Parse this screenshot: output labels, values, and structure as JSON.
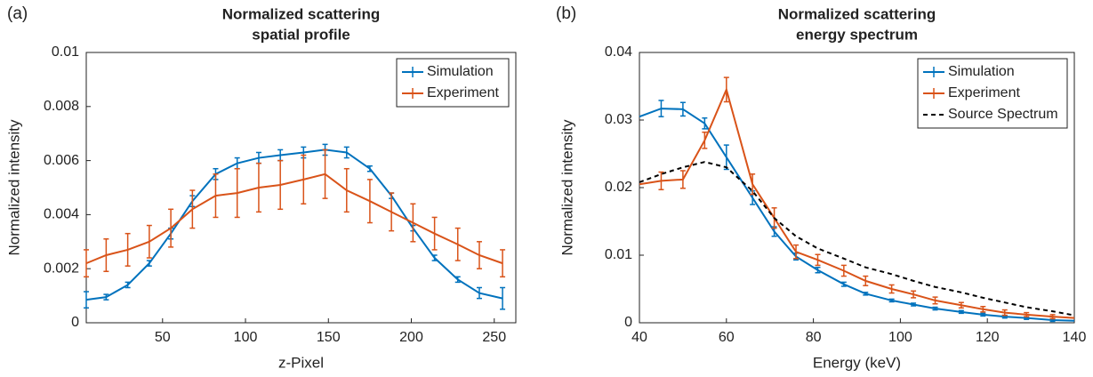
{
  "chart_data": [
    {
      "type": "line",
      "panel": "(a)",
      "title": "Normalized scattering",
      "subtitle": "spatial profile",
      "xlabel": "z-Pixel",
      "ylabel": "Normalized intensity",
      "xlim": [
        4,
        263
      ],
      "xticks": [
        50,
        100,
        150,
        200,
        250
      ],
      "ylim": [
        0,
        0.01
      ],
      "yticks": [
        0,
        0.002,
        0.004,
        0.006,
        0.008,
        0.01
      ],
      "legend": "top-right",
      "x": [
        4,
        16,
        29,
        42,
        55,
        68,
        82,
        95,
        108,
        121,
        135,
        148,
        161,
        175,
        188,
        201,
        214,
        228,
        241,
        255
      ],
      "series": [
        {
          "name": "Simulation",
          "color": "#0072bd",
          "dash": false,
          "values": [
            0.00085,
            0.00095,
            0.0014,
            0.0022,
            0.0033,
            0.0045,
            0.0055,
            0.0059,
            0.0061,
            0.0062,
            0.0063,
            0.0064,
            0.0063,
            0.0057,
            0.0047,
            0.0035,
            0.0024,
            0.0016,
            0.0011,
            0.0009
          ],
          "errors": [
            0.0003,
            0.0001,
            0.0001,
            0.0001,
            0.0002,
            0.0002,
            0.0002,
            0.0002,
            0.0002,
            0.0002,
            0.0002,
            0.0002,
            0.0002,
            0.0001,
            0.0001,
            0.0001,
            0.0001,
            0.0001,
            0.0002,
            0.0004
          ]
        },
        {
          "name": "Experiment",
          "color": "#d95319",
          "dash": false,
          "values": [
            0.0022,
            0.0025,
            0.0027,
            0.003,
            0.0035,
            0.0042,
            0.0047,
            0.0048,
            0.005,
            0.0051,
            0.0053,
            0.0055,
            0.0049,
            0.0045,
            0.0041,
            0.0037,
            0.0033,
            0.0029,
            0.0025,
            0.0022
          ],
          "errors": [
            0.0005,
            0.0006,
            0.0006,
            0.0006,
            0.0007,
            0.0007,
            0.0008,
            0.0009,
            0.0009,
            0.0009,
            0.0009,
            0.0009,
            0.0008,
            0.0008,
            0.0007,
            0.0007,
            0.0006,
            0.0006,
            0.0005,
            0.0005
          ]
        }
      ]
    },
    {
      "type": "line",
      "panel": "(b)",
      "title": "Normalized scattering",
      "subtitle": "energy spectrum",
      "xlabel": "Energy (keV)",
      "ylabel": "Normalized intensity",
      "xlim": [
        40,
        140
      ],
      "xticks": [
        40,
        60,
        80,
        100,
        120,
        140
      ],
      "ylim": [
        0,
        0.04
      ],
      "yticks": [
        0,
        0.01,
        0.02,
        0.03,
        0.04
      ],
      "legend": "top-right",
      "x": [
        40,
        45,
        50,
        55,
        60,
        66,
        71,
        76,
        81,
        87,
        92,
        98,
        103,
        108,
        114,
        119,
        124,
        129,
        135,
        140
      ],
      "series": [
        {
          "name": "Simulation",
          "color": "#0072bd",
          "dash": false,
          "values": [
            0.0305,
            0.0317,
            0.0316,
            0.0295,
            0.0245,
            0.0185,
            0.0135,
            0.0098,
            0.0078,
            0.0057,
            0.0043,
            0.0033,
            0.0027,
            0.0021,
            0.0016,
            0.0012,
            0.0009,
            0.0007,
            0.0004,
            0.0003
          ],
          "errors": [
            null,
            0.0012,
            0.001,
            0.0008,
            0.0018,
            0.001,
            0.0007,
            0.0005,
            0.0004,
            0.0003,
            0.0002,
            0.0002,
            0.0002,
            0.0002,
            0.0002,
            0.0002,
            0.0002,
            0.0002,
            0.0002,
            null
          ]
        },
        {
          "name": "Experiment",
          "color": "#d95319",
          "dash": false,
          "values": [
            0.0205,
            0.021,
            0.0212,
            0.027,
            0.0345,
            0.0205,
            0.0155,
            0.0105,
            0.0093,
            0.0077,
            0.0062,
            0.005,
            0.0042,
            0.0033,
            0.0026,
            0.002,
            0.0015,
            0.0012,
            0.0009,
            0.0007
          ],
          "errors": [
            null,
            0.0013,
            0.0013,
            0.0012,
            0.0018,
            0.0015,
            0.0015,
            0.001,
            0.0008,
            0.0008,
            0.0007,
            0.0006,
            0.0005,
            0.0005,
            0.0004,
            0.0004,
            0.0004,
            0.0003,
            0.0003,
            null
          ]
        },
        {
          "name": "Source Spectrum",
          "color": "#000000",
          "dash": true,
          "values": [
            0.0208,
            0.022,
            0.023,
            0.0238,
            0.023,
            0.0195,
            0.0155,
            0.0128,
            0.011,
            0.0095,
            0.0082,
            0.0072,
            0.0062,
            0.0053,
            0.0045,
            0.0037,
            0.003,
            0.0023,
            0.0017,
            0.0011
          ]
        }
      ]
    }
  ]
}
